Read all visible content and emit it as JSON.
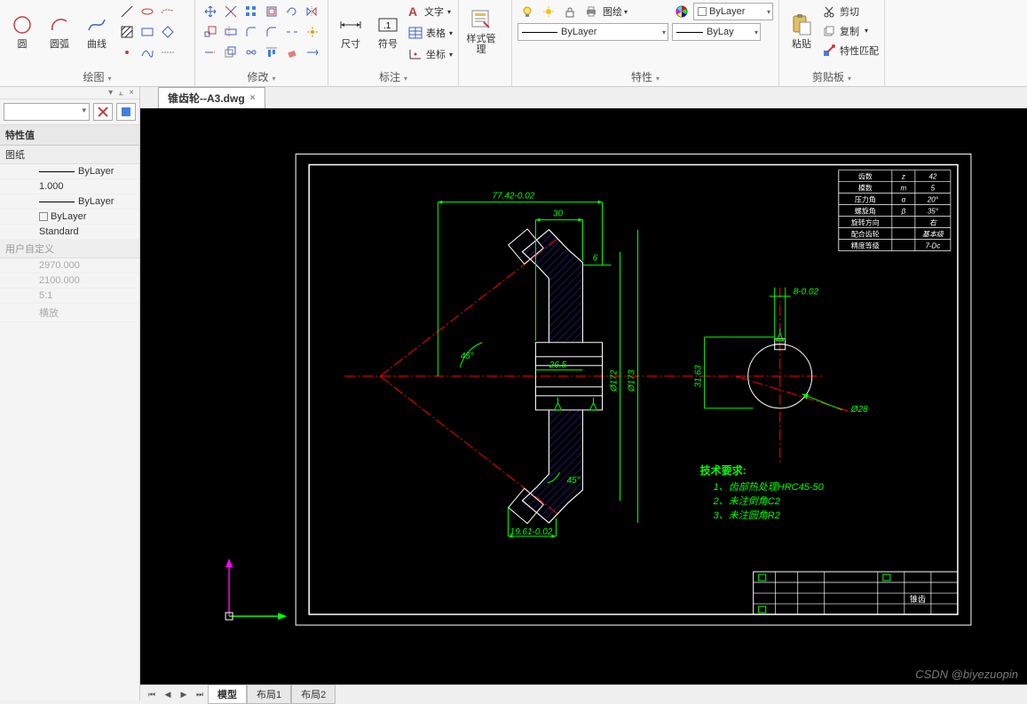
{
  "ribbon": {
    "groups": {
      "draw": {
        "label": "绘图",
        "circle": "圆",
        "arc": "圆弧",
        "curve": "曲线"
      },
      "modify": {
        "label": "修改"
      },
      "annotate": {
        "label": "标注",
        "dim": "尺寸",
        "symbol": "符号",
        "text": "文字",
        "table": "表格",
        "coord": "坐标"
      },
      "style": {
        "label": "样式管理",
        "btn": "样式管理"
      },
      "props": {
        "label": "特性",
        "layer_dd": "ByLayer",
        "linetype_dd": "ByLayer",
        "lineweight_dd": "ByLay"
      },
      "clipboard": {
        "label": "剪贴板",
        "paste": "粘贴",
        "cut": "剪切",
        "copy": "复制",
        "match": "特性匹配"
      }
    }
  },
  "filetab": {
    "name": "锥齿轮--A3.dwg"
  },
  "props_panel": {
    "header": "特性值",
    "sections": [
      {
        "title": "图纸",
        "rows": [
          {
            "k": "",
            "v_html": "line",
            "v": "ByLayer"
          },
          {
            "k": "",
            "v": "1.000"
          },
          {
            "k": "",
            "v_html": "line",
            "v": "ByLayer"
          },
          {
            "k": "",
            "v_html": "sq",
            "v": "ByLayer"
          },
          {
            "k": "",
            "v": "Standard"
          }
        ]
      },
      {
        "title": "用户自定义",
        "muted": true,
        "rows": [
          {
            "k": "",
            "v": "2970.000",
            "muted": true
          },
          {
            "k": "",
            "v": "2100.000",
            "muted": true
          },
          {
            "k": "",
            "v": "5:1",
            "muted": true
          },
          {
            "k": "",
            "v": "横放",
            "muted": true
          }
        ]
      }
    ]
  },
  "bottom_tabs": {
    "model": "模型",
    "layout1": "布局1",
    "layout2": "布局2"
  },
  "watermark": "CSDN @biyezuopin",
  "drawing": {
    "colors": {
      "frame": "#ffffff",
      "dim": "#00ff00",
      "center": "#ff0000",
      "hatch": "#3030c0",
      "body": "#ffffff",
      "ucs_y": "#ff00ff",
      "ucs_x": "#00ff00"
    },
    "dims": {
      "d1": "77.42-0.02",
      "d2": "30",
      "d3": "6",
      "d4": "26.5",
      "d5": "Ø172",
      "d6": "Ø173",
      "d7": "31.63",
      "d8": "8-0.02",
      "d9": "Ø28",
      "d10": "19.61-0.02",
      "a45": "45°"
    },
    "notes": {
      "title": "技术要求:",
      "n1": "1、齿部热处理HRC45-50",
      "n2": "2、未注倒角C2",
      "n3": "3、未注圆角R2"
    },
    "param_table": {
      "rows": [
        [
          "齿数",
          "z",
          "42"
        ],
        [
          "模数",
          "m",
          "5"
        ],
        [
          "压力角",
          "α",
          "20°"
        ],
        [
          "螺旋角",
          "β",
          "35°"
        ],
        [
          "旋转方向",
          "",
          "右"
        ],
        [
          "配合齿轮",
          "",
          "基本级"
        ],
        [
          "精度等级",
          "",
          "7-Dc"
        ]
      ]
    },
    "titleblock_label": "锥齿"
  }
}
